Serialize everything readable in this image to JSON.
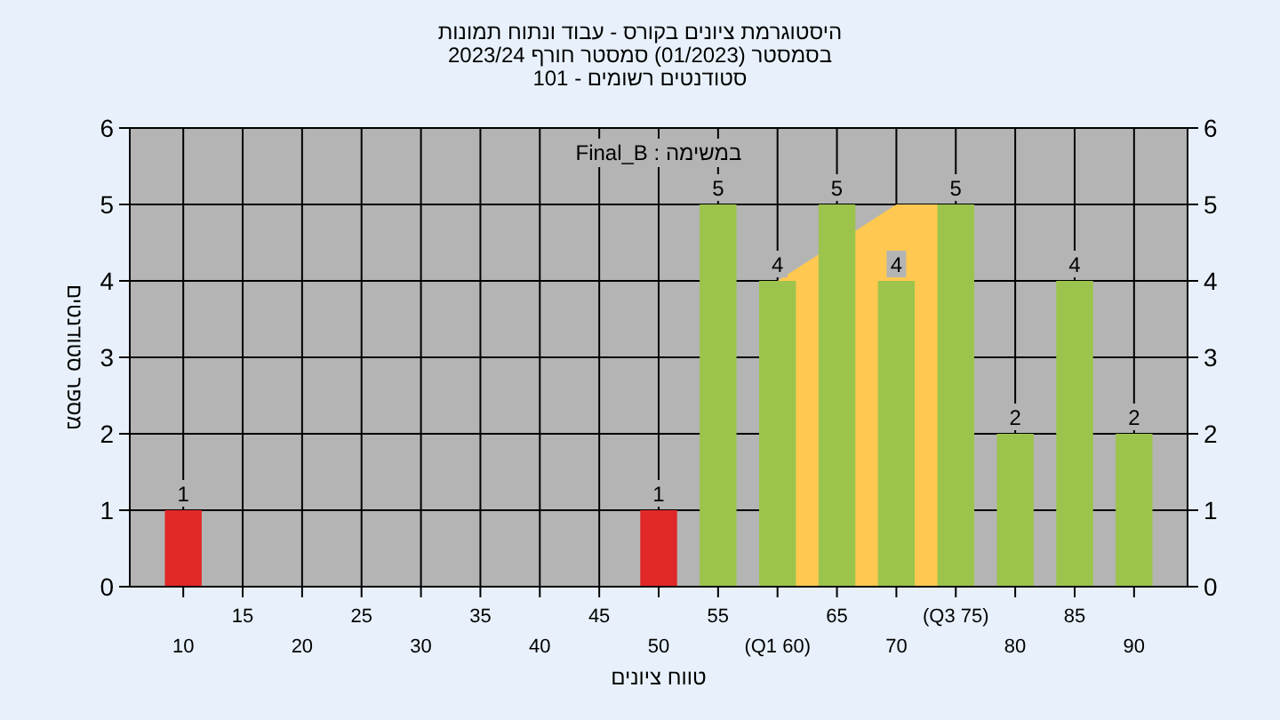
{
  "chart_data": {
    "type": "bar",
    "title": "היסטוגרמת ציונים בקורס - עבוד ונתוח תמונות",
    "subtitle": "בסמסטר  (01/2023)  סמסטר חורף 2023/24",
    "annotations": [
      "סטודנטים רשומים - 101",
      "במשימה : Final_B"
    ],
    "xlabel": "טווח ציונים",
    "ylabel": "מספר סטודנטים",
    "categories": [
      "10",
      "15",
      "20",
      "25",
      "30",
      "35",
      "40",
      "45",
      "50",
      "55",
      "(Q1 60)",
      "65",
      "70",
      "(Q3 75)",
      "80",
      "85",
      "90"
    ],
    "series": [
      {
        "type": "area",
        "color": "#ffc850",
        "values": [
          null,
          null,
          null,
          null,
          null,
          null,
          null,
          null,
          null,
          null,
          4,
          null,
          5,
          5,
          null,
          null,
          null
        ]
      },
      {
        "colors": [
          "#e02828",
          "#e02828",
          "#e02828",
          "#e02828",
          "#e02828",
          "#e02828",
          "#e02828",
          "#e02828",
          "#e02828",
          "#9cc44c",
          "#9cc44c",
          "#9cc44c",
          "#9cc44c",
          "#9cc44c",
          "#9cc44c",
          "#9cc44c",
          "#9cc44c"
        ],
        "values": [
          1,
          0,
          0,
          0,
          0,
          0,
          0,
          0,
          1,
          5,
          4,
          5,
          4,
          5,
          2,
          4,
          2
        ],
        "value_labels": [
          "1",
          null,
          null,
          null,
          null,
          null,
          null,
          null,
          "1",
          "5",
          "4",
          "5",
          "4",
          "5",
          "2",
          "4",
          "2"
        ]
      }
    ],
    "ylim": [
      0,
      6
    ],
    "yticks": [
      0,
      1,
      2,
      3,
      4,
      5,
      6
    ],
    "y2lim": [
      0,
      6
    ],
    "y2ticks": [
      0,
      1,
      2,
      3,
      4,
      5,
      6
    ],
    "grid": true
  }
}
